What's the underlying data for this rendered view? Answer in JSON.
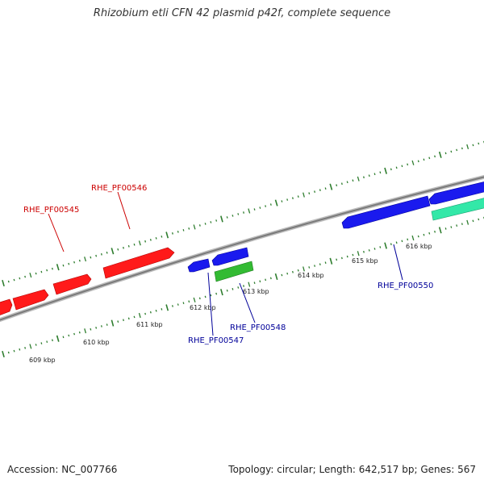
{
  "title": "Rhizobium etli CFN 42 plasmid p42f, complete sequence",
  "footer": {
    "accession": "Accession: NC_007766",
    "topology": "Topology: circular; Length: 642,517 bp; Genes: 567"
  },
  "colors": {
    "backbone": "#8a8a8a",
    "tick": "#2e7d2e",
    "forward_gene": "#ff1a1a",
    "reverse_gene": "#1a1aee",
    "green_gene": "#33bb33",
    "teal_gene": "#33e8a8",
    "label_red": "#cc0000",
    "label_blue": "#000099"
  },
  "scale_labels": [
    "609 kbp",
    "610 kbp",
    "611 kbp",
    "612 kbp",
    "613 kbp",
    "614 kbp",
    "615 kbp",
    "616 kbp"
  ],
  "genes": [
    {
      "label": "RHE_PF00545",
      "color": "red"
    },
    {
      "label": "RHE_PF00546",
      "color": "red"
    },
    {
      "label": "RHE_PF00547",
      "color": "blue"
    },
    {
      "label": "RHE_PF00548",
      "color": "blue"
    },
    {
      "label": "RHE_PF00550",
      "color": "blue"
    }
  ]
}
